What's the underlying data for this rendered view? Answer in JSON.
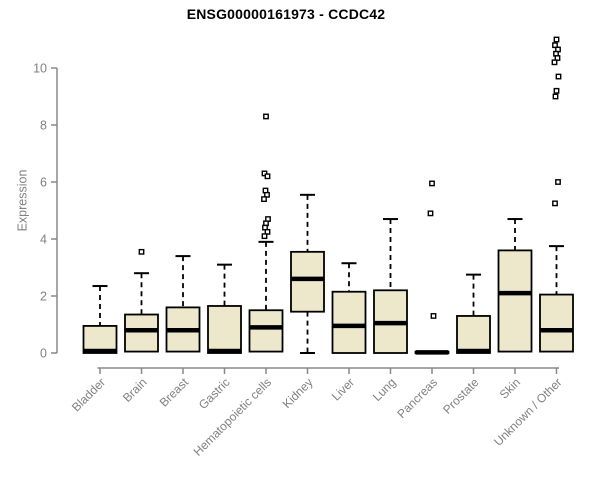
{
  "chart_data": {
    "type": "boxplot",
    "title": "ENSG00000161973 - CCDC42",
    "ylabel": "Expression",
    "xlabel": "",
    "ylim": [
      0,
      11.2
    ],
    "yticks": [
      0,
      2,
      4,
      6,
      8,
      10
    ],
    "grid": false,
    "legend": false,
    "categories": [
      "Bladder",
      "Brain",
      "Breast",
      "Gastric",
      "Hematopoietic cells",
      "Kidney",
      "Liver",
      "Lung",
      "Pancreas",
      "Prostate",
      "Skin",
      "Unknown / Other"
    ],
    "boxes": [
      {
        "label": "Bladder",
        "whisker_low": 0,
        "q1": 0,
        "median": 0.07,
        "q3": 0.95,
        "whisker_high": 2.35,
        "outliers": []
      },
      {
        "label": "Brain",
        "whisker_low": 0.05,
        "q1": 0.05,
        "median": 0.8,
        "q3": 1.35,
        "whisker_high": 2.8,
        "outliers": [
          3.55
        ]
      },
      {
        "label": "Breast",
        "whisker_low": 0.05,
        "q1": 0.05,
        "median": 0.8,
        "q3": 1.6,
        "whisker_high": 3.4,
        "outliers": []
      },
      {
        "label": "Gastric",
        "whisker_low": 0,
        "q1": 0,
        "median": 0.07,
        "q3": 1.65,
        "whisker_high": 3.1,
        "outliers": []
      },
      {
        "label": "Hematopoietic cells",
        "whisker_low": 0.05,
        "q1": 0.05,
        "median": 0.9,
        "q3": 1.5,
        "whisker_high": 3.9,
        "outliers": [
          8.3,
          6.3,
          6.2,
          5.7,
          5.55,
          5.4,
          4.7,
          4.55,
          4.4,
          4.25,
          4.1
        ]
      },
      {
        "label": "Kidney",
        "whisker_low": 0,
        "q1": 1.45,
        "median": 2.6,
        "q3": 3.55,
        "whisker_high": 5.55,
        "outliers": []
      },
      {
        "label": "Liver",
        "whisker_low": 0,
        "q1": 0,
        "median": 0.95,
        "q3": 2.15,
        "whisker_high": 3.15,
        "outliers": []
      },
      {
        "label": "Lung",
        "whisker_low": 0,
        "q1": 0,
        "median": 1.05,
        "q3": 2.2,
        "whisker_high": 4.7,
        "outliers": []
      },
      {
        "label": "Pancreas",
        "whisker_low": 0,
        "q1": 0,
        "median": 0.02,
        "q3": 0.04,
        "whisker_high": 0.04,
        "outliers": [
          5.95,
          4.9,
          1.3
        ]
      },
      {
        "label": "Prostate",
        "whisker_low": 0,
        "q1": 0,
        "median": 0.07,
        "q3": 1.3,
        "whisker_high": 2.75,
        "outliers": []
      },
      {
        "label": "Skin",
        "whisker_low": 0.05,
        "q1": 0.05,
        "median": 2.1,
        "q3": 3.6,
        "whisker_high": 4.7,
        "outliers": []
      },
      {
        "label": "Unknown / Other",
        "whisker_low": 0,
        "q1": 0.05,
        "median": 0.8,
        "q3": 2.05,
        "whisker_high": 3.75,
        "outliers": [
          11.0,
          10.8,
          10.65,
          10.5,
          10.35,
          10.2,
          9.7,
          9.2,
          9.0,
          6.0,
          5.25
        ]
      }
    ],
    "colors": {
      "box_fill": "#EDE8CC",
      "box_border": "#000000",
      "median": "#000000",
      "axis": "#888888",
      "text": "#808080",
      "title": "#000000",
      "outlier_fill": "#ffffff"
    }
  }
}
